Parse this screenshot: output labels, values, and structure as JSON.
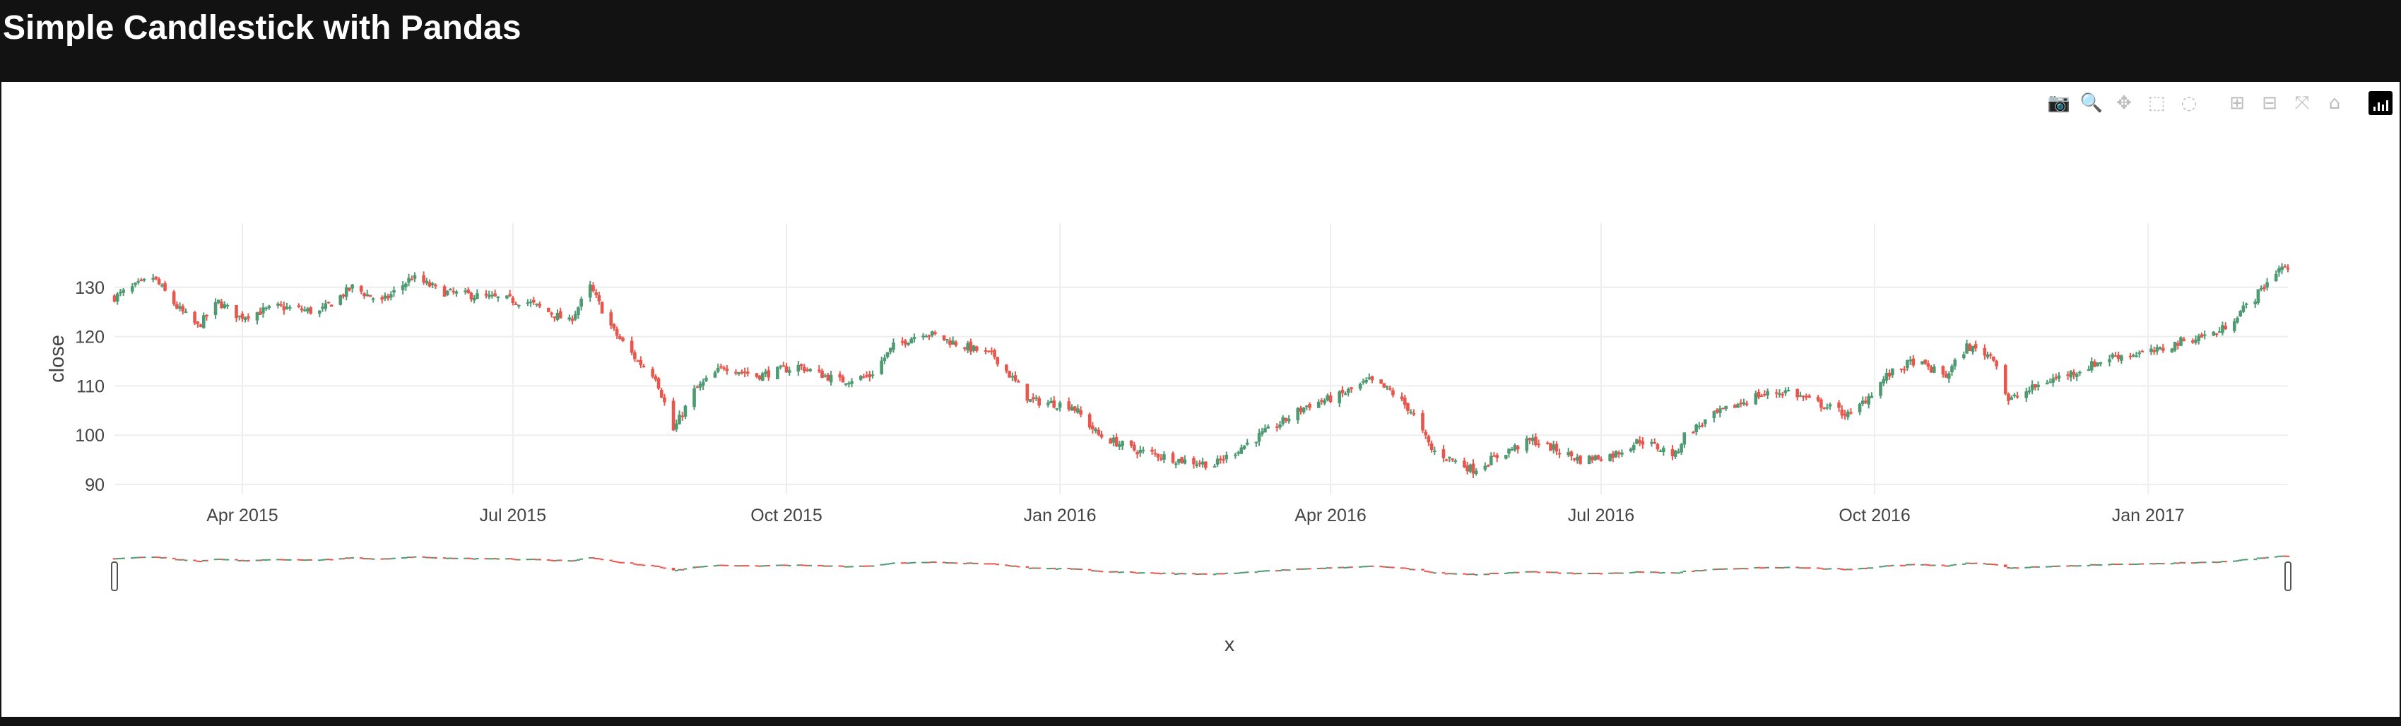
{
  "page": {
    "title": "Simple Candlestick with Pandas"
  },
  "modebar": {
    "buttons": [
      {
        "name": "camera-icon",
        "glyph": "📷",
        "active": false
      },
      {
        "name": "zoom-icon",
        "glyph": "🔍",
        "active": true
      },
      {
        "name": "pan-icon",
        "glyph": "✥",
        "active": false
      },
      {
        "name": "box-select-icon",
        "glyph": "⬚",
        "active": false
      },
      {
        "name": "lasso-select-icon",
        "glyph": "◌",
        "active": false
      },
      {
        "name": "zoom-in-icon",
        "glyph": "⊞",
        "active": false
      },
      {
        "name": "zoom-out-icon",
        "glyph": "⊟",
        "active": false
      },
      {
        "name": "autoscale-icon",
        "glyph": "⤧",
        "active": false
      },
      {
        "name": "reset-axes-icon",
        "glyph": "⌂",
        "active": false
      }
    ]
  },
  "colors": {
    "increasing": "#3d9970",
    "decreasing": "#ff4136",
    "increasing_display": "#4e9a73",
    "decreasing_display": "#e8574d",
    "grid": "#eeeeee",
    "text": "#444444",
    "page_background": "#121212",
    "plot_background": "#ffffff"
  },
  "chart_data": {
    "type": "candlestick",
    "title": "",
    "xlabel": "x",
    "ylabel": "close",
    "x_tick_labels": [
      "Apr 2015",
      "Jul 2015",
      "Oct 2015",
      "Jan 2016",
      "Apr 2016",
      "Jul 2016",
      "Oct 2016",
      "Jan 2017"
    ],
    "x_tick_dates": [
      "2015-04-01",
      "2015-07-01",
      "2015-10-01",
      "2016-01-01",
      "2016-04-01",
      "2016-07-01",
      "2016-10-01",
      "2017-01-01"
    ],
    "y_tick_labels": [
      "90",
      "100",
      "110",
      "120",
      "130"
    ],
    "y_tick_values": [
      90,
      100,
      110,
      120,
      130
    ],
    "xlim": [
      "2015-02-17",
      "2017-02-17"
    ],
    "ylim": [
      88,
      143
    ],
    "rangeslider": true,
    "grid": true,
    "legend": "none",
    "close_series": {
      "name": "close",
      "x": [
        "2015-02-17",
        "2015-03-02",
        "2015-03-10",
        "2015-03-17",
        "2015-03-24",
        "2015-03-31",
        "2015-04-13",
        "2015-04-27",
        "2015-05-08",
        "2015-05-18",
        "2015-05-28",
        "2015-06-08",
        "2015-06-22",
        "2015-07-06",
        "2015-07-20",
        "2015-07-27",
        "2015-08-04",
        "2015-08-12",
        "2015-08-18",
        "2015-08-24",
        "2015-08-31",
        "2015-09-10",
        "2015-09-21",
        "2015-10-05",
        "2015-10-19",
        "2015-10-29",
        "2015-11-06",
        "2015-11-16",
        "2015-11-30",
        "2015-12-10",
        "2015-12-22",
        "2016-01-05",
        "2016-01-14",
        "2016-01-26",
        "2016-02-03",
        "2016-02-10",
        "2016-02-22",
        "2016-03-03",
        "2016-03-14",
        "2016-03-24",
        "2016-04-04",
        "2016-04-14",
        "2016-04-21",
        "2016-04-28",
        "2016-05-05",
        "2016-05-12",
        "2016-05-19",
        "2016-05-31",
        "2016-06-08",
        "2016-06-16",
        "2016-06-24",
        "2016-07-05",
        "2016-07-14",
        "2016-07-26",
        "2016-07-29",
        "2016-08-08",
        "2016-08-22",
        "2016-09-02",
        "2016-09-09",
        "2016-09-14",
        "2016-09-23",
        "2016-10-05",
        "2016-10-14",
        "2016-10-25",
        "2016-11-01",
        "2016-11-10",
        "2016-11-15",
        "2016-11-28",
        "2016-12-08",
        "2016-12-20",
        "2017-01-04",
        "2017-01-12",
        "2017-01-25",
        "2017-02-06",
        "2017-02-14"
      ],
      "close": [
        128,
        132,
        126,
        122,
        127,
        124,
        126,
        125,
        130,
        127,
        132,
        129,
        128,
        127,
        123,
        130,
        121,
        115,
        112,
        101,
        109,
        114,
        112,
        114,
        111,
        112,
        118,
        121,
        118,
        116,
        107,
        106,
        100,
        97,
        96,
        95,
        94,
        98,
        102,
        106,
        108,
        111,
        109,
        105,
        97,
        95,
        93,
        97,
        99,
        97,
        95,
        96,
        99,
        96,
        100,
        104,
        108,
        109,
        107,
        106,
        104,
        112,
        115,
        112,
        118,
        116,
        107,
        111,
        113,
        116,
        117,
        119,
        121,
        128,
        134
      ]
    }
  },
  "rangeslider": {
    "left_handle": "range-handle-left",
    "right_handle": "range-handle-right"
  }
}
